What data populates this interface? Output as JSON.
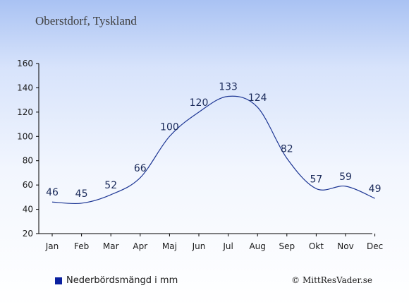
{
  "title": "Oberstdorf, Tyskland",
  "legend_label": "Nederbördsmängd i mm",
  "credit": "© MittResVader.se",
  "colors": {
    "line": "#1d3694",
    "legend": "#0a20a0",
    "axis": "#000000"
  },
  "chart_data": {
    "type": "line",
    "categories": [
      "Jan",
      "Feb",
      "Mar",
      "Apr",
      "Maj",
      "Jun",
      "Jul",
      "Aug",
      "Sep",
      "Okt",
      "Nov",
      "Dec"
    ],
    "series": [
      {
        "values": [
          46,
          45,
          52,
          66,
          100,
          120,
          133,
          124,
          82,
          57,
          59,
          49
        ]
      }
    ],
    "yticks": [
      20,
      40,
      60,
      80,
      100,
      120,
      140,
      160
    ],
    "ylim": [
      20,
      160
    ],
    "grid": false,
    "legend_position": "bottom-left"
  }
}
